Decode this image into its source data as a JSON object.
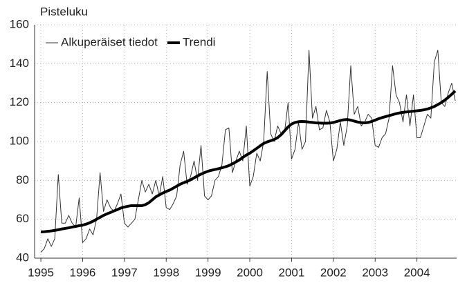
{
  "chart_data": {
    "type": "line",
    "y_label": "Pisteluku",
    "x": [
      1995,
      1995.083,
      1995.167,
      1995.25,
      1995.333,
      1995.417,
      1995.5,
      1995.583,
      1995.667,
      1995.75,
      1995.833,
      1995.917,
      1996,
      1996.083,
      1996.167,
      1996.25,
      1996.333,
      1996.417,
      1996.5,
      1996.583,
      1996.667,
      1996.75,
      1996.833,
      1996.917,
      1997,
      1997.083,
      1997.167,
      1997.25,
      1997.333,
      1997.417,
      1997.5,
      1997.583,
      1997.667,
      1997.75,
      1997.833,
      1997.917,
      1998,
      1998.083,
      1998.167,
      1998.25,
      1998.333,
      1998.417,
      1998.5,
      1998.583,
      1998.667,
      1998.75,
      1998.833,
      1998.917,
      1999,
      1999.083,
      1999.167,
      1999.25,
      1999.333,
      1999.417,
      1999.5,
      1999.583,
      1999.667,
      1999.75,
      1999.833,
      1999.917,
      2000,
      2000.083,
      2000.167,
      2000.25,
      2000.333,
      2000.417,
      2000.5,
      2000.583,
      2000.667,
      2000.75,
      2000.833,
      2000.917,
      2001,
      2001.083,
      2001.167,
      2001.25,
      2001.333,
      2001.417,
      2001.5,
      2001.583,
      2001.667,
      2001.75,
      2001.833,
      2001.917,
      2002,
      2002.083,
      2002.167,
      2002.25,
      2002.333,
      2002.417,
      2002.5,
      2002.583,
      2002.667,
      2002.75,
      2002.833,
      2002.917,
      2003,
      2003.083,
      2003.167,
      2003.25,
      2003.333,
      2003.417,
      2003.5,
      2003.583,
      2003.667,
      2003.75,
      2003.833,
      2003.917,
      2004,
      2004.083,
      2004.167,
      2004.25,
      2004.333,
      2004.417,
      2004.5,
      2004.583,
      2004.667,
      2004.75,
      2004.833,
      2004.917
    ],
    "series": [
      {
        "name": "Alkuperäiset tiedot",
        "color": "#333333",
        "width": 1,
        "values": [
          43,
          45,
          50,
          46,
          50,
          83,
          58,
          58,
          62,
          58,
          56,
          71,
          48,
          50,
          55,
          52,
          60,
          84,
          64,
          70,
          66,
          64,
          68,
          73,
          58,
          56,
          58,
          60,
          70,
          80,
          74,
          78,
          73,
          80,
          72,
          82,
          66,
          65,
          68,
          72,
          88,
          95,
          78,
          82,
          90,
          80,
          98,
          72,
          70,
          72,
          80,
          82,
          88,
          106,
          107,
          84,
          90,
          95,
          90,
          108,
          77,
          82,
          94,
          90,
          100,
          136,
          104,
          100,
          108,
          104,
          105,
          120,
          91,
          96,
          110,
          96,
          100,
          147,
          112,
          118,
          106,
          107,
          116,
          110,
          90,
          96,
          110,
          98,
          108,
          139,
          114,
          118,
          108,
          110,
          114,
          112,
          98,
          97,
          102,
          104,
          112,
          139,
          124,
          120,
          110,
          124,
          108,
          124,
          102,
          102,
          108,
          114,
          112,
          141,
          147,
          120,
          118,
          125,
          130,
          121
        ]
      },
      {
        "name": "Trendi",
        "color": "#000000",
        "width": 4,
        "values": [
          53.5,
          53.6,
          53.8,
          54,
          54.3,
          54.6,
          55,
          55.3,
          55.6,
          56,
          56.3,
          56.7,
          57,
          57.5,
          58.2,
          59,
          60,
          61,
          62,
          62.8,
          63.5,
          64.3,
          65,
          65.8,
          66.3,
          66.7,
          67,
          67,
          67,
          67,
          67.5,
          68.5,
          70,
          71.5,
          72.5,
          73.5,
          74.3,
          75,
          76,
          77,
          78,
          78.8,
          79.5,
          80.3,
          81.3,
          82.3,
          83.2,
          84,
          84.7,
          85.2,
          85.6,
          86,
          86.5,
          87,
          87.6,
          88.5,
          89.5,
          90.5,
          91.8,
          93,
          94,
          95.2,
          96.5,
          97.8,
          99,
          99.8,
          100.4,
          101,
          102,
          103.5,
          105.5,
          107.5,
          109,
          109.8,
          110.2,
          110.3,
          110.2,
          110,
          109.8,
          109.6,
          109.5,
          109.4,
          109.4,
          109.5,
          109.8,
          110.3,
          110.8,
          111.2,
          111.3,
          111,
          110.5,
          110,
          109.7,
          109.6,
          109.8,
          110.3,
          111,
          111.7,
          112.3,
          112.8,
          113.3,
          113.8,
          114.3,
          114.7,
          115,
          115.2,
          115.4,
          115.6,
          115.8,
          116,
          116.3,
          116.7,
          117.3,
          118,
          119,
          120,
          121.3,
          122.7,
          124.3,
          126
        ]
      }
    ],
    "xlim": [
      1994.85,
      2004.95
    ],
    "xticks": [
      1995,
      1996,
      1997,
      1998,
      1999,
      2000,
      2001,
      2002,
      2003,
      2004
    ],
    "ylim": [
      40,
      160
    ],
    "yticks": [
      40,
      60,
      80,
      100,
      120,
      140,
      160
    ],
    "grid": true,
    "legend": "top-left"
  }
}
